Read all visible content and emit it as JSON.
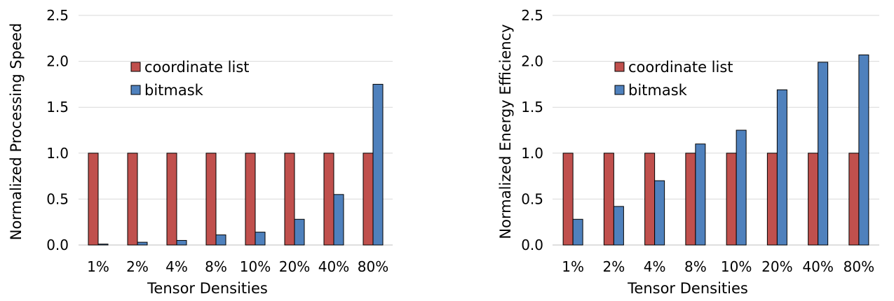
{
  "chart_data": [
    {
      "type": "bar",
      "title": "",
      "xlabel": "Tensor Densities",
      "ylabel": "Normalized Processing Speed",
      "categories": [
        "1%",
        "2%",
        "4%",
        "8%",
        "10%",
        "20%",
        "40%",
        "80%"
      ],
      "ylim": [
        0,
        2.5
      ],
      "yticks": [
        "0.0",
        "0.5",
        "1.0",
        "1.5",
        "2.0",
        "2.5"
      ],
      "grid": true,
      "legend_position": "upper-left",
      "series": [
        {
          "name": "coordinate list",
          "color": "#c0504d",
          "values": [
            1,
            1,
            1,
            1,
            1,
            1,
            1,
            1
          ]
        },
        {
          "name": "bitmask",
          "color": "#4f81bd",
          "values": [
            0.01,
            0.03,
            0.05,
            0.11,
            0.14,
            0.28,
            0.55,
            1.75
          ]
        }
      ]
    },
    {
      "type": "bar",
      "title": "",
      "xlabel": "Tensor Densities",
      "ylabel": "Normalized Energy Efficiency",
      "categories": [
        "1%",
        "2%",
        "4%",
        "8%",
        "10%",
        "20%",
        "40%",
        "80%"
      ],
      "ylim": [
        0,
        2.5
      ],
      "yticks": [
        "0.0",
        "0.5",
        "1.0",
        "1.5",
        "2.0",
        "2.5"
      ],
      "grid": true,
      "legend_position": "upper-left",
      "series": [
        {
          "name": "coordinate list",
          "color": "#c0504d",
          "values": [
            1,
            1,
            1,
            1,
            1,
            1,
            1,
            1
          ]
        },
        {
          "name": "bitmask",
          "color": "#4f81bd",
          "values": [
            0.28,
            0.42,
            0.7,
            1.1,
            1.25,
            1.69,
            1.99,
            2.07
          ]
        }
      ]
    }
  ]
}
